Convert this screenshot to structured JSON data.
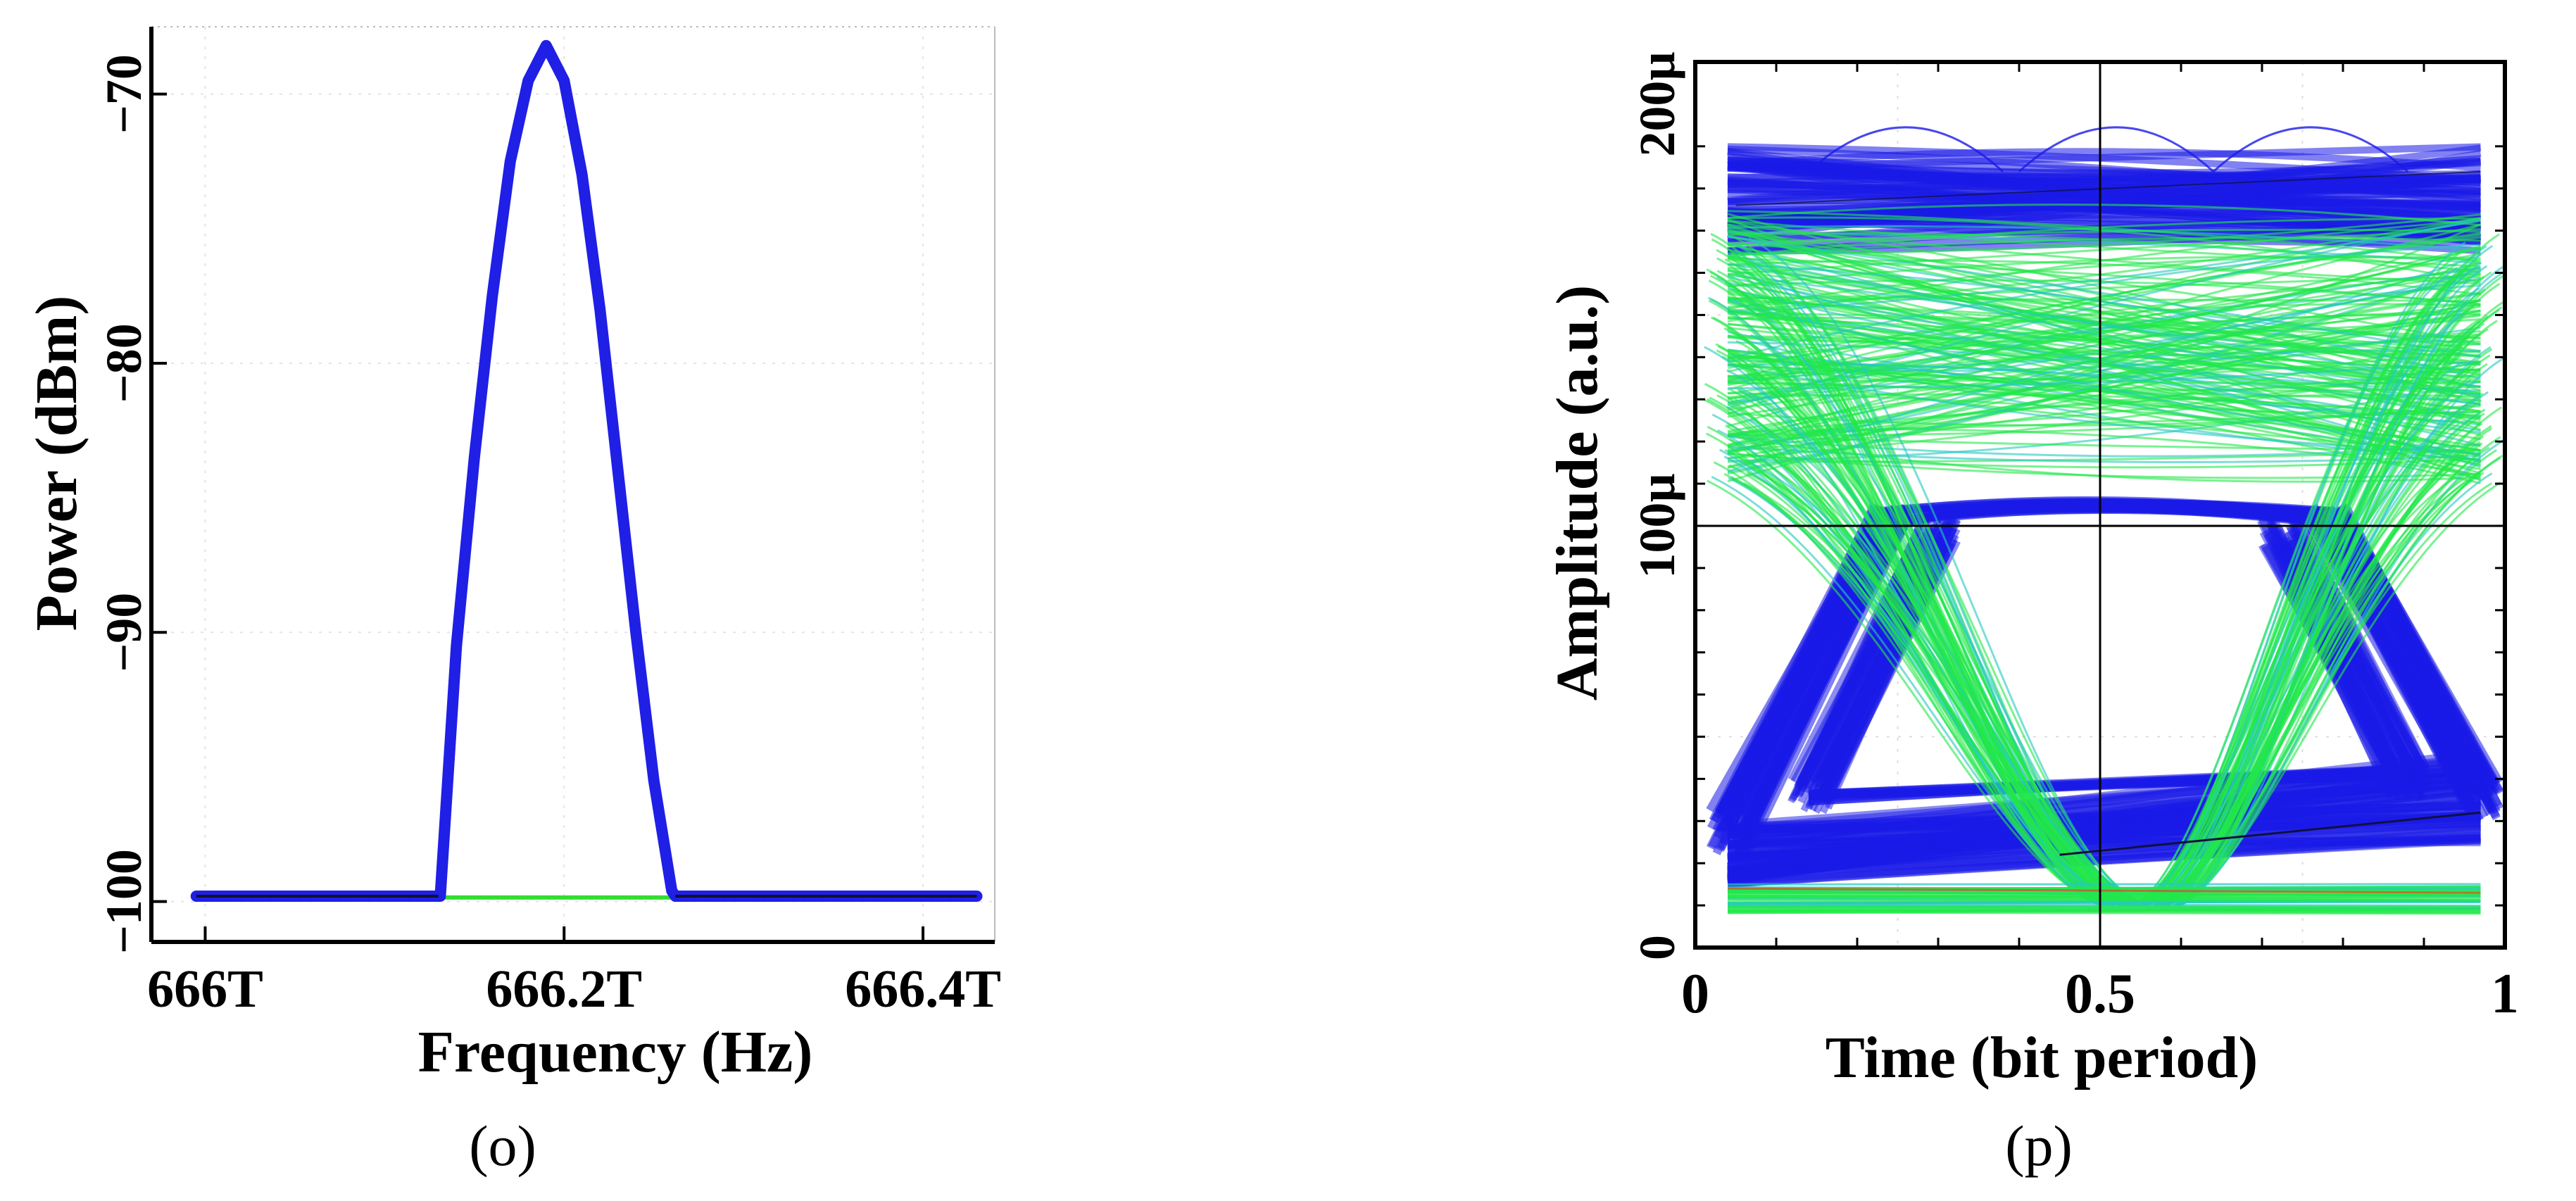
{
  "chart_data": [
    {
      "type": "line",
      "panel_label": "(o)",
      "xlabel": "Frequency (Hz)",
      "ylabel": "Power (dBm)",
      "x_ticks": [
        {
          "value": 666.0,
          "label": "666T"
        },
        {
          "value": 666.2,
          "label": "666.2T"
        },
        {
          "value": 666.4,
          "label": "666.4T"
        }
      ],
      "y_ticks": [
        {
          "value": -70,
          "label": "−70"
        },
        {
          "value": -80,
          "label": "−80"
        },
        {
          "value": -90,
          "label": "−90"
        },
        {
          "value": -100,
          "label": "−100"
        }
      ],
      "xlim": [
        665.97,
        666.44
      ],
      "ylim": [
        -101.5,
        -67.5
      ],
      "grid": true,
      "series": [
        {
          "color": "#1f1fe6",
          "x": [
            665.995,
            666.13,
            666.131,
            666.14,
            666.15,
            666.16,
            666.17,
            666.18,
            666.19,
            666.2,
            666.21,
            666.22,
            666.23,
            666.24,
            666.25,
            666.26,
            666.262,
            666.43
          ],
          "y": [
            -99.8,
            -99.8,
            -99.8,
            -90.5,
            -83.5,
            -77.5,
            -72.5,
            -69.5,
            -68.2,
            -69.5,
            -73.0,
            -78.0,
            -84.0,
            -90.0,
            -95.5,
            -99.6,
            -99.8,
            -99.8
          ]
        },
        {
          "color": "#33dd33",
          "x": [
            665.995,
            666.43
          ],
          "y": [
            -99.85,
            -99.85
          ]
        }
      ]
    },
    {
      "type": "line",
      "panel_label": "(p)",
      "xlabel": "Time (bit period)",
      "ylabel": "Amplitude (a.u.)",
      "x_ticks": [
        {
          "value": 0,
          "label": "0"
        },
        {
          "value": 0.5,
          "label": "0.5"
        },
        {
          "value": 1,
          "label": "1"
        }
      ],
      "y_ticks": [
        {
          "value": 0,
          "label": "0"
        },
        {
          "value": 100,
          "label": "100µ"
        },
        {
          "value": 200,
          "label": "200µ"
        }
      ],
      "xlim": [
        0,
        1
      ],
      "ylim": [
        0,
        210
      ],
      "grid": true,
      "eye_diagram": {
        "high_level_blue": [
          165,
          190
        ],
        "high_level_green": [
          110,
          175
        ],
        "low_level_blue": [
          15,
          35
        ],
        "low_level_green": [
          8,
          15
        ],
        "crossing_center": 0.55,
        "x_span": [
          0.04,
          0.97
        ]
      },
      "colors": {
        "blue": "#1a1ae8",
        "green": "#22e84a",
        "cyan": "#25c8c0"
      }
    }
  ]
}
